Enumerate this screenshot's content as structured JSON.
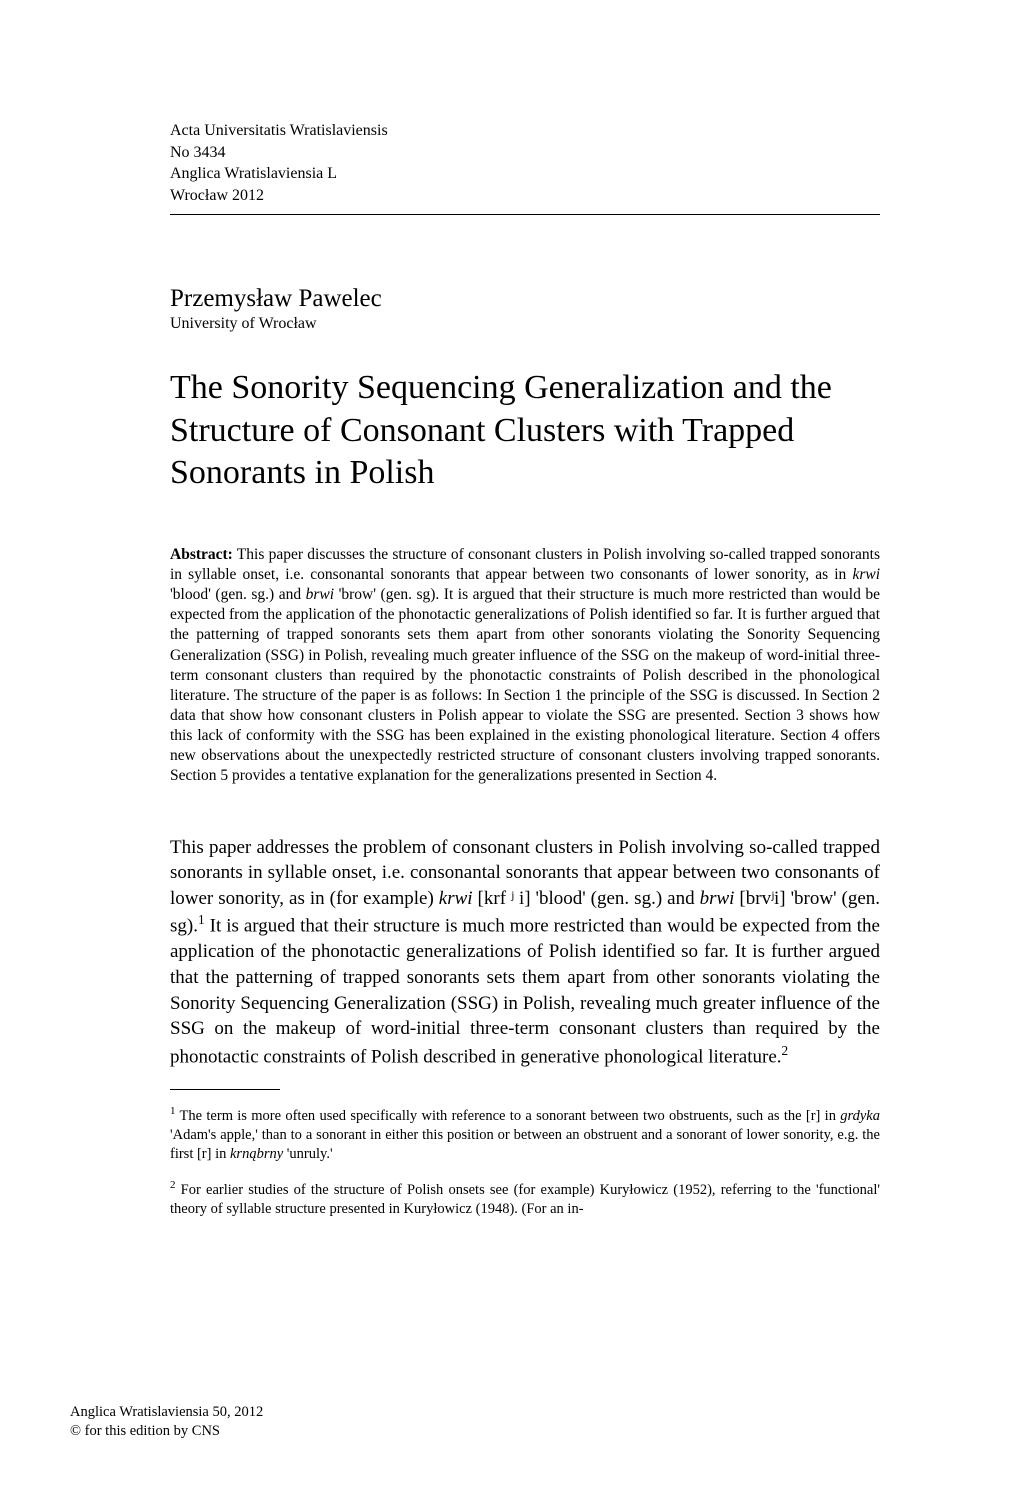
{
  "journal": {
    "line1": "Acta Universitatis Wratislaviensis",
    "line2": "No 3434",
    "line3": "Anglica Wratislaviensia L",
    "line4": "Wrocław 2012"
  },
  "author": {
    "name": "Przemysław Pawelec",
    "affiliation": "University of Wrocław"
  },
  "title": "The Sonority Sequencing Generalization and the Structure of Consonant Clusters with Trapped Sonorants in Polish",
  "abstract": {
    "label": "Abstract:",
    "text_before_italic1": " This paper discusses the structure of consonant clusters in Polish involving so-called trapped sonorants in syllable onset, i.e. consonantal sonorants that appear between two consonants of lower sonority, as in ",
    "italic1": "krwi",
    "text_after_italic1": " 'blood' (gen. sg.) and ",
    "italic2": "brwi",
    "text_after_italic2": " 'brow' (gen. sg). It is argued that their structure is much more restricted than would be expected from the application of the phonotactic generalizations of Polish identified so far. It is further argued that the patterning of trapped sonorants sets them apart from other sonorants violating the Sonority Sequencing Generalization (SSG) in Polish, revealing much greater influence of the SSG on the makeup of word-initial three-term consonant clusters than required by the phonotactic constraints of Polish described in the phonological literature. The structure of the paper is as follows: In Section 1 the principle of the SSG is discussed. In Section 2 data that show how consonant clusters in Polish appear to violate the SSG are presented. Section 3 shows how this lack of conformity with the SSG has been explained in the existing phonological literature. Section 4 offers new observations about the unexpectedly restricted structure of consonant clusters involving trapped sonorants. Section 5 provides a tentative explanation for the generalizations presented in Section 4."
  },
  "intro": {
    "part1": "This paper addresses the problem of consonant clusters in Polish involving so-called trapped sonorants in syllable onset, i.e. consonantal sonorants that appear between two consonants of lower sonority, as in (for example) ",
    "italic1": "krwi",
    "part2": " [krf ʲ i] 'blood' (gen. sg.) and ",
    "italic2": "brwi",
    "part3": " [brvʲi] 'brow' (gen. sg).",
    "sup1": "1",
    "part4": " It is argued that their structure is much more restricted than would be expected from the application of the phonotactic generalizations of Polish identified so far. It is further argued that the patterning of trapped sonorants sets them apart from other sonorants violating the Sonority Sequencing Generalization (SSG) in Polish, revealing much greater influence of the SSG on the makeup of word-initial three-term consonant clusters than required by the phonotactic constraints of Polish described in generative phonological literature.",
    "sup2": "2"
  },
  "footnotes": {
    "fn1": {
      "marker": "1",
      "text_before": " The term is more often used specifically with reference to a sonorant between two obstruents, such as the [r] in ",
      "italic1": "grdyka",
      "text_mid": " 'Adam's apple,' than to a sonorant in either this position or between an obstruent and a sonorant of lower sonority, e.g. the first [r] in ",
      "italic2": "krnąbrny",
      "text_after": " 'unruly.'"
    },
    "fn2": {
      "marker": "2",
      "text": " For earlier studies of the structure of Polish onsets see (for example) Kuryłowicz (1952), referring to the 'functional' theory of syllable structure presented in Kuryłowicz (1948). (For an in-"
    }
  },
  "footer": {
    "line1": "Anglica Wratislaviensia 50, 2012",
    "line2": "© for this edition by CNS"
  }
}
